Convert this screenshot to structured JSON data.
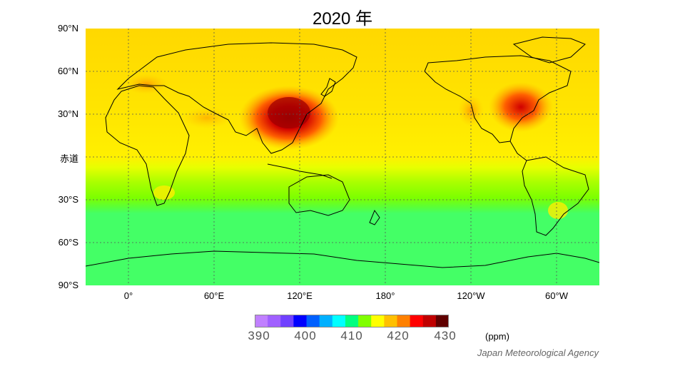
{
  "title": "2020 年",
  "lat_labels": [
    "90°N",
    "60°N",
    "30°N",
    "赤道",
    "30°S",
    "60°S",
    "90°S"
  ],
  "lon_labels": [
    "0°",
    "60°E",
    "120°E",
    "180°",
    "120°W",
    "60°W"
  ],
  "colorbar": {
    "ticks": [
      "390",
      "400",
      "410",
      "420",
      "430"
    ],
    "unit": "(ppm)",
    "colors": [
      "#c080ff",
      "#a060ff",
      "#7040ff",
      "#0000ff",
      "#0060ff",
      "#00b0ff",
      "#00ffff",
      "#00ff80",
      "#80ff00",
      "#ffff00",
      "#ffc000",
      "#ff8000",
      "#ff0000",
      "#c00000",
      "#600000"
    ]
  },
  "credit": "Japan Meteorological Agency",
  "colors": {
    "north_band": "#ffd400",
    "tropics": "#ffee00",
    "south_mid": "#7cff00",
    "south_high": "#44ff66",
    "hotspot": "#b80000"
  }
}
